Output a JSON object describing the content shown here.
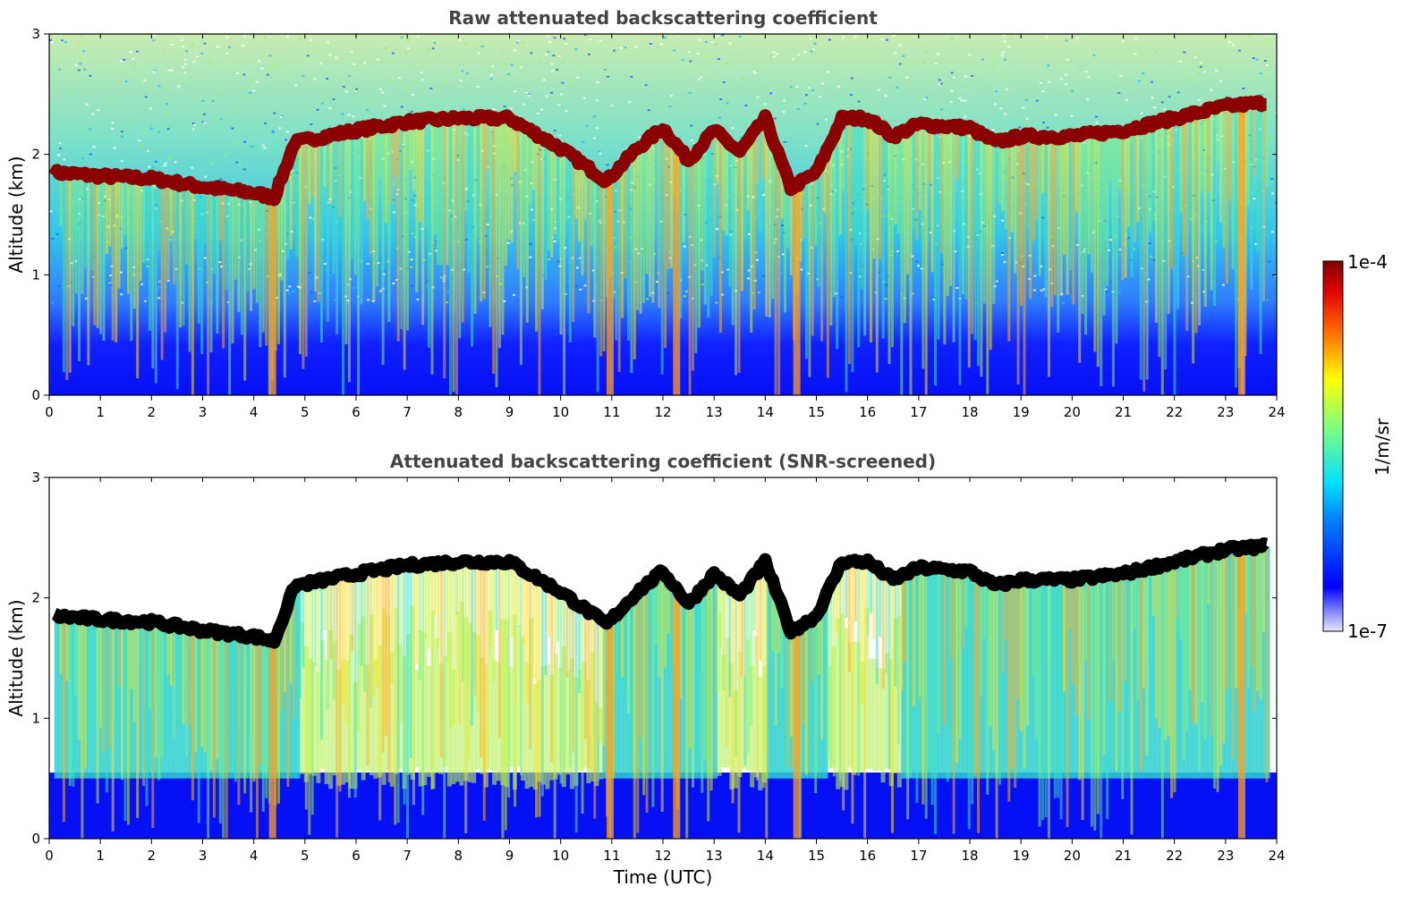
{
  "chart_data": [
    {
      "type": "heatmap",
      "title": "Raw attenuated backscattering coefficient",
      "xlabel": "",
      "ylabel": "Altitude (km)",
      "xlim": [
        0,
        24
      ],
      "ylim": [
        0,
        3
      ],
      "x_ticks": [
        "0",
        "1",
        "2",
        "3",
        "4",
        "5",
        "6",
        "7",
        "8",
        "9",
        "10",
        "11",
        "12",
        "13",
        "14",
        "15",
        "16",
        "17",
        "18",
        "19",
        "20",
        "21",
        "22",
        "23",
        "24"
      ],
      "y_ticks": [
        "0",
        "1",
        "2",
        "3"
      ],
      "cloud_base_km": {
        "x": [
          0.1,
          1,
          2,
          3,
          4,
          4.4,
          4.8,
          6,
          7,
          8,
          9,
          10,
          10.9,
          11.5,
          12,
          12.5,
          13,
          13.5,
          14,
          14.5,
          15,
          15.5,
          16,
          16.5,
          17,
          18,
          18.5,
          19,
          20,
          21,
          22,
          23,
          23.8
        ],
        "y": [
          1.85,
          1.82,
          1.8,
          1.73,
          1.68,
          1.64,
          2.1,
          2.2,
          2.27,
          2.3,
          2.3,
          2.05,
          1.78,
          2.05,
          2.22,
          1.95,
          2.2,
          2.02,
          2.3,
          1.72,
          1.85,
          2.3,
          2.3,
          2.15,
          2.25,
          2.22,
          2.1,
          2.15,
          2.15,
          2.2,
          2.3,
          2.4,
          2.43
        ]
      },
      "grid": false
    },
    {
      "type": "heatmap",
      "title": "Attenuated backscattering coefficient (SNR-screened)",
      "xlabel": "Time (UTC)",
      "ylabel": "Altitude (km)",
      "xlim": [
        0,
        24
      ],
      "ylim": [
        0,
        3
      ],
      "x_ticks": [
        "0",
        "1",
        "2",
        "3",
        "4",
        "5",
        "6",
        "7",
        "8",
        "9",
        "10",
        "11",
        "12",
        "13",
        "14",
        "15",
        "16",
        "17",
        "18",
        "19",
        "20",
        "21",
        "22",
        "23",
        "24"
      ],
      "y_ticks": [
        "0",
        "1",
        "2",
        "3"
      ],
      "grid": false
    }
  ],
  "colorbar": {
    "label": "1/m/sr",
    "max_label": "1e-4",
    "min_label": "1e-7",
    "range": [
      1e-07,
      0.0001
    ],
    "colormap": "jet"
  },
  "colors": {
    "title_text": "#444444",
    "cloud": "#8b0000",
    "screened_cloud": "#000000",
    "background_low": "#0a10f0",
    "noise_mid": "#22ccdd",
    "masked": "#ffffff"
  }
}
